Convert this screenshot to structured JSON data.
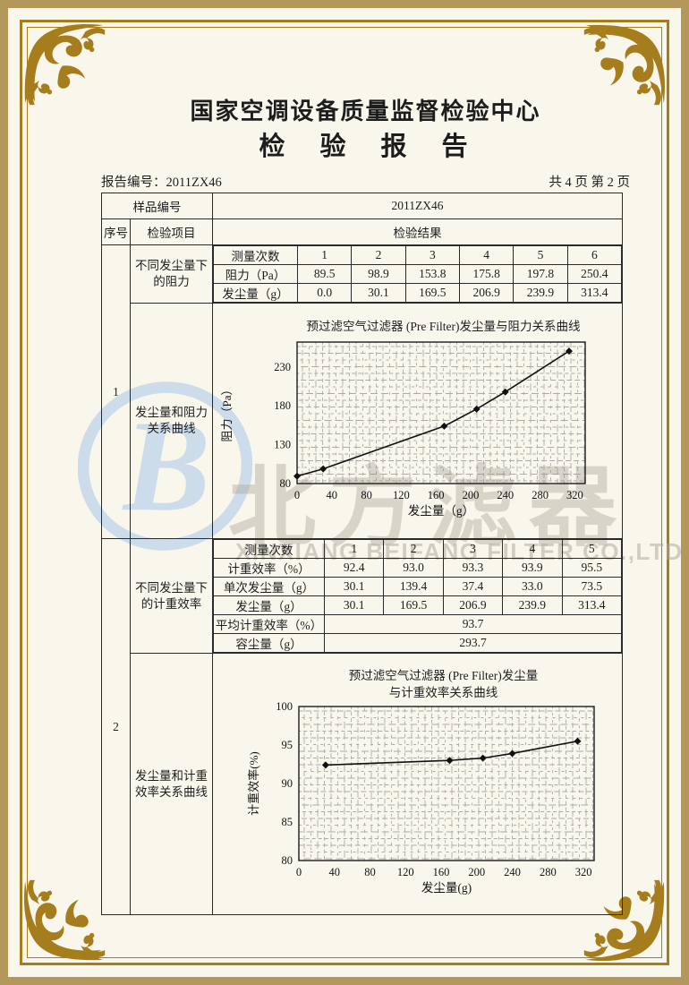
{
  "header": {
    "org_title": "国家空调设备质量监督检验中心",
    "report_title": "检　验　报　告",
    "report_no_label": "报告编号：",
    "report_no": "2011ZX46",
    "pagination": "共 4 页 第 2 页"
  },
  "sample": {
    "label": "样品编号",
    "value": "2011ZX46"
  },
  "table_head": {
    "serial": "序号",
    "item": "检验项目",
    "result": "检验结果"
  },
  "section1": {
    "serial": "1",
    "item_rows": "不同发尘量下的阻力",
    "item_chart": "发尘量和阻力关系曲线",
    "rows": {
      "label_count": "测量次数",
      "label_resistance": "阻力（Pa）",
      "label_dust": "发尘量（g）",
      "counts": [
        "1",
        "2",
        "3",
        "4",
        "5",
        "6"
      ],
      "resistance": [
        "89.5",
        "98.9",
        "153.8",
        "175.8",
        "197.8",
        "250.4"
      ],
      "dust": [
        "0.0",
        "30.1",
        "169.5",
        "206.9",
        "239.9",
        "313.4"
      ]
    }
  },
  "section2": {
    "serial": "2",
    "item_rows": "不同发尘量下的计重效率",
    "item_chart": "发尘量和计重效率关系曲线",
    "rows": {
      "label_count": "测量次数",
      "label_eff": "计重效率（%）",
      "label_single": "单次发尘量（g）",
      "label_dust": "发尘量（g）",
      "label_avg": "平均计重效率（%）",
      "label_cap": "容尘量（g）",
      "counts": [
        "1",
        "2",
        "3",
        "4",
        "5"
      ],
      "efficiency": [
        "92.4",
        "93.0",
        "93.3",
        "93.9",
        "95.5"
      ],
      "single_dust": [
        "30.1",
        "139.4",
        "37.4",
        "33.0",
        "73.5"
      ],
      "dust": [
        "30.1",
        "169.5",
        "206.9",
        "239.9",
        "313.4"
      ],
      "avg_efficiency": "93.7",
      "dust_capacity": "293.7"
    }
  },
  "chart_data": [
    {
      "type": "line",
      "title": "预过滤空气过滤器 (Pre Filter)发尘量与阻力关系曲线",
      "xlabel": "发尘量（g）",
      "ylabel": "阻力（Pa）",
      "x": [
        0,
        30.1,
        169.5,
        206.9,
        239.9,
        313.4
      ],
      "y": [
        89.5,
        98.9,
        153.8,
        175.8,
        197.8,
        250.4
      ],
      "xticks": [
        0,
        40,
        80,
        120,
        160,
        200,
        240,
        280,
        320
      ],
      "yticks": [
        80,
        130,
        180,
        230
      ],
      "xlim": [
        0,
        332
      ],
      "ylim": [
        80,
        262
      ],
      "grid": true,
      "legend": "none",
      "marker": "diamond"
    },
    {
      "type": "line",
      "title": "预过滤空气过滤器 (Pre Filter)发尘量",
      "title2": "与计重效率关系曲线",
      "xlabel": "发尘量(g)",
      "ylabel": "计重效率(%)",
      "x": [
        30.1,
        169.5,
        206.9,
        239.9,
        313.4
      ],
      "y": [
        92.4,
        93.0,
        93.3,
        93.9,
        95.5
      ],
      "xticks": [
        0,
        40,
        80,
        120,
        160,
        200,
        240,
        280,
        320
      ],
      "yticks": [
        80,
        85,
        90,
        95,
        100
      ],
      "xlim": [
        0,
        332
      ],
      "ylim": [
        80,
        100
      ],
      "grid": true,
      "legend": "none",
      "marker": "diamond"
    }
  ],
  "watermark": {
    "logo_letter": "B",
    "text_cn": "北方滤器",
    "text_en": "XINXIANG BEIFANG FILTER CO.,LTD."
  }
}
